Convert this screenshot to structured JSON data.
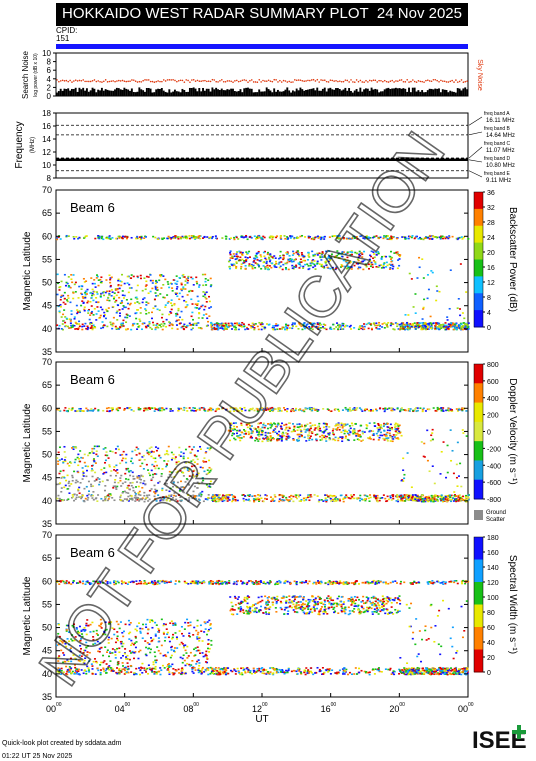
{
  "header": {
    "title": "HOKKAIDO WEST RADAR SUMMARY PLOT",
    "date": "24 Nov 2025"
  },
  "cpid": {
    "label": "CPID:",
    "value": "151"
  },
  "noise_panel": {
    "ylabel1": "Search Noise",
    "ylabel2": "log power (dB x 10)",
    "side_label": "Sky Noise",
    "yticks": [
      "0",
      "2",
      "4",
      "6",
      "8",
      "10"
    ]
  },
  "freq_panel": {
    "ylabel": "Frequency",
    "units": "(MHz)",
    "yticks": [
      "8",
      "10",
      "12",
      "14",
      "16",
      "18"
    ],
    "bands": [
      {
        "name": "freq band A",
        "value": "16.11 MHz"
      },
      {
        "name": "freq band B",
        "value": "14.64 MHz"
      },
      {
        "name": "freq band C",
        "value": "11.07 MHz"
      },
      {
        "name": "freq band D",
        "value": "10.80 MHz"
      },
      {
        "name": "freq band E",
        "value": "9.11 MHz"
      }
    ]
  },
  "panels": [
    {
      "beam": "Beam  6",
      "ylabel": "Magnetic Latitude",
      "colorbar_label": "Backscatter Power (dB)",
      "colorbar_ticks": [
        "36",
        "32",
        "28",
        "24",
        "20",
        "16",
        "12",
        "8",
        "4",
        "0"
      ]
    },
    {
      "beam": "Beam  6",
      "ylabel": "Magnetic Latitude",
      "colorbar_label": "Doppler Velocity (m s⁻¹)",
      "colorbar_ticks": [
        "800",
        "600",
        "400",
        "200",
        "0",
        "-200",
        "-400",
        "-600",
        "-800"
      ],
      "ground_label": "Ground Scatter"
    },
    {
      "beam": "Beam  6",
      "ylabel": "Magnetic Latitude",
      "colorbar_label": "Spectral Width (m s⁻¹)",
      "colorbar_ticks": [
        "180",
        "160",
        "140",
        "120",
        "100",
        "80",
        "60",
        "40",
        "20",
        "0"
      ]
    }
  ],
  "lat_ticks": [
    "70",
    "65",
    "60",
    "55",
    "50",
    "45",
    "40",
    "35"
  ],
  "xaxis": {
    "label": "UT",
    "ticks": [
      "00",
      "04",
      "08",
      "12",
      "16",
      "20",
      "00"
    ],
    "tick_sup": "00"
  },
  "watermark": "NOT FOR PUBLICATION",
  "footer": {
    "credit": "Quick-look plot created by sddata.adm",
    "date": "01:22 UT 25 Nov 2025"
  },
  "logo": {
    "text": "ISEE"
  },
  "colors": {
    "title_bg": "#000000",
    "cpid_bar": "#1515ff",
    "noise_red": "#e03a10",
    "gray_scatter": "#8c8c8c",
    "blue": "#1010ff",
    "green": "#18c018",
    "yellow": "#e8e800",
    "orange": "#ff8000",
    "red": "#e00000"
  },
  "chart_data": {
    "type": "heatmap",
    "title": "HOKKAIDO WEST RADAR SUMMARY PLOT",
    "xlabel": "UT",
    "x_range_hours": [
      0,
      24
    ],
    "ylabel": "Magnetic Latitude",
    "ylim": [
      35,
      70
    ],
    "panels": [
      {
        "name": "Backscatter Power (dB)",
        "clim": [
          0,
          36
        ]
      },
      {
        "name": "Doppler Velocity (m s-1)",
        "clim": [
          -800,
          800
        ]
      },
      {
        "name": "Spectral Width (m s-1)",
        "clim": [
          0,
          180
        ]
      }
    ],
    "noise": {
      "ylim": [
        0,
        10
      ],
      "sky_noise_level": 3.5,
      "search_noise_level": 0.8
    },
    "frequency": {
      "ylim": [
        8,
        18
      ],
      "levels_mhz": [
        16.11,
        14.64,
        11.07,
        10.8,
        9.11
      ]
    }
  }
}
